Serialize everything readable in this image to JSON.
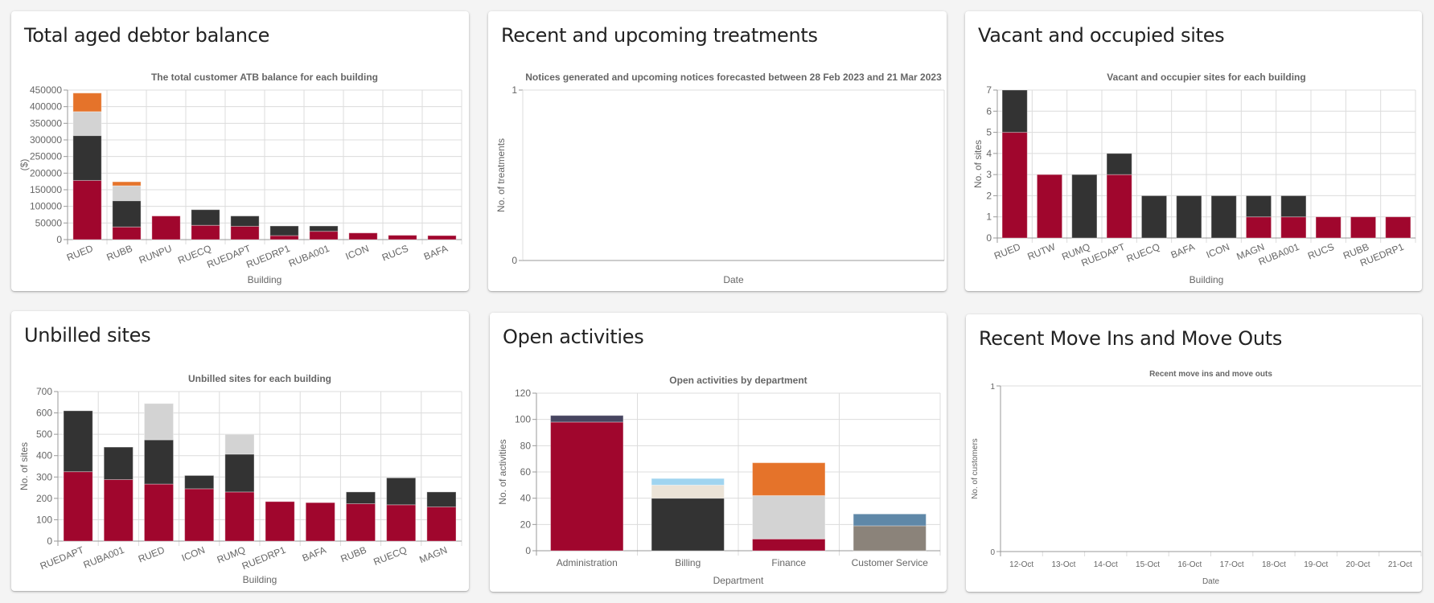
{
  "colors": {
    "crimson": "#a0062d",
    "dark": "#333333",
    "lightgrey": "#d3d3d3",
    "orange": "#e5732a",
    "navy": "#474560",
    "beige": "#ebe3d7",
    "lightblue": "#9fd4f0",
    "steelblue": "#5f88a8",
    "taupe": "#8b837a"
  },
  "cards": [
    {
      "title": "Total aged debtor balance"
    },
    {
      "title": "Recent and upcoming treatments"
    },
    {
      "title": "Vacant and occupied sites"
    },
    {
      "title": "Unbilled sites"
    },
    {
      "title": "Open activities"
    },
    {
      "title": "Recent Move Ins and Move Outs"
    }
  ],
  "chart_data": [
    {
      "type": "bar",
      "stacked": true,
      "title": "The total customer ATB balance for each building",
      "xlabel": "Building",
      "ylabel": "($)",
      "ylim": [
        0,
        450000
      ],
      "yticks": [
        0,
        50000,
        100000,
        150000,
        200000,
        250000,
        300000,
        350000,
        400000,
        450000
      ],
      "ytick_labels": [
        "0",
        "50000",
        "100000",
        "150000",
        "200000",
        "250000",
        "300000",
        "350000",
        "400000",
        "450000"
      ],
      "categories": [
        "RUED",
        "RUBB",
        "RUNPU",
        "RUECQ",
        "RUEDAPT",
        "RUEDRP1",
        "RUBA001",
        "ICON",
        "RUCS",
        "BAFA"
      ],
      "series": [
        {
          "color": "crimson",
          "values": [
            178000,
            38000,
            71000,
            43000,
            40000,
            12000,
            25000,
            20000,
            13000,
            12000
          ]
        },
        {
          "color": "dark",
          "values": [
            135000,
            79000,
            0,
            47000,
            31000,
            29000,
            16000,
            0,
            0,
            0
          ]
        },
        {
          "color": "lightgrey",
          "values": [
            72000,
            45000,
            0,
            0,
            0,
            0,
            0,
            0,
            0,
            0
          ]
        },
        {
          "color": "orange",
          "values": [
            56000,
            12000,
            0,
            0,
            0,
            0,
            0,
            0,
            0,
            0
          ]
        }
      ],
      "grid": true,
      "rotate_labels": true
    },
    {
      "type": "bar",
      "stacked": true,
      "title": "Notices generated and upcoming notices forecasted between 28 Feb 2023 and 21 Mar 2023",
      "xlabel": "Date",
      "ylabel": "No. of treatments",
      "ylim": [
        0,
        1
      ],
      "yticks": [
        0,
        1
      ],
      "ytick_labels": [
        "0",
        "1"
      ],
      "categories": [],
      "series": [],
      "grid": false
    },
    {
      "type": "bar",
      "stacked": true,
      "title": "Vacant and occupier sites for each building",
      "xlabel": "Building",
      "ylabel": "No. of sites",
      "ylim": [
        0,
        7
      ],
      "yticks": [
        0,
        1,
        2,
        3,
        4,
        5,
        6,
        7
      ],
      "ytick_labels": [
        "0",
        "1",
        "2",
        "3",
        "4",
        "5",
        "6",
        "7"
      ],
      "categories": [
        "RUED",
        "RUTW",
        "RUMQ",
        "RUEDAPT",
        "RUECQ",
        "BAFA",
        "ICON",
        "MAGN",
        "RUBA001",
        "RUCS",
        "RUBB",
        "RUEDRP1"
      ],
      "series": [
        {
          "color": "crimson",
          "values": [
            5,
            3,
            0,
            3,
            0,
            0,
            0,
            1,
            1,
            1,
            1,
            1
          ]
        },
        {
          "color": "dark",
          "values": [
            2,
            0,
            3,
            1,
            2,
            2,
            2,
            1,
            1,
            0,
            0,
            0
          ]
        }
      ],
      "grid": true,
      "rotate_labels": true
    },
    {
      "type": "bar",
      "stacked": true,
      "title": "Unbilled sites for each building",
      "xlabel": "Building",
      "ylabel": "No. of sites",
      "ylim": [
        0,
        700
      ],
      "yticks": [
        0,
        100,
        200,
        300,
        400,
        500,
        600,
        700
      ],
      "ytick_labels": [
        "0",
        "100",
        "200",
        "300",
        "400",
        "500",
        "600",
        "700"
      ],
      "categories": [
        "RUEDAPT",
        "RUBA001",
        "RUED",
        "ICON",
        "RUMQ",
        "RUEDRP1",
        "BAFA",
        "RUBB",
        "RUECQ",
        "MAGN"
      ],
      "series": [
        {
          "color": "crimson",
          "values": [
            325,
            288,
            267,
            245,
            230,
            185,
            180,
            175,
            170,
            160
          ]
        },
        {
          "color": "dark",
          "values": [
            285,
            152,
            207,
            62,
            177,
            0,
            0,
            55,
            126,
            70
          ]
        },
        {
          "color": "lightgrey",
          "values": [
            0,
            0,
            170,
            0,
            93,
            0,
            0,
            0,
            0,
            0
          ]
        }
      ],
      "grid": true,
      "rotate_labels": true
    },
    {
      "type": "bar",
      "stacked": true,
      "title": "Open activities by department",
      "xlabel": "Department",
      "ylabel": "No. of activities",
      "ylim": [
        0,
        120
      ],
      "yticks": [
        0,
        20,
        40,
        60,
        80,
        100,
        120
      ],
      "ytick_labels": [
        "0",
        "20",
        "40",
        "60",
        "80",
        "100",
        "120"
      ],
      "categories": [
        "Administration",
        "Billing",
        "Finance",
        "Customer Service"
      ],
      "series": [
        {
          "color": "crimson",
          "values": [
            98,
            0,
            9,
            0
          ]
        },
        {
          "color": "dark",
          "values": [
            0,
            40,
            0,
            0
          ]
        },
        {
          "color": "taupe",
          "values": [
            0,
            0,
            0,
            19
          ]
        },
        {
          "color": "lightgrey",
          "values": [
            0,
            0,
            33,
            0
          ]
        },
        {
          "color": "beige",
          "values": [
            0,
            10,
            0,
            0
          ]
        },
        {
          "color": "navy",
          "values": [
            5,
            0,
            0,
            0
          ]
        },
        {
          "color": "lightblue",
          "values": [
            0,
            5,
            0,
            0
          ]
        },
        {
          "color": "orange",
          "values": [
            0,
            0,
            25,
            0
          ]
        },
        {
          "color": "steelblue",
          "values": [
            0,
            0,
            0,
            9
          ]
        }
      ],
      "grid": true,
      "rotate_labels": false
    },
    {
      "type": "bar",
      "stacked": true,
      "title": "Recent move ins and move outs",
      "xlabel": "Date",
      "ylabel": "No. of customers",
      "ylim": [
        0,
        1
      ],
      "yticks": [
        0,
        1
      ],
      "ytick_labels": [
        "0",
        "1"
      ],
      "categories": [
        "12-Oct",
        "13-Oct",
        "14-Oct",
        "15-Oct",
        "16-Oct",
        "17-Oct",
        "18-Oct",
        "19-Oct",
        "20-Oct",
        "21-Oct"
      ],
      "series": [],
      "grid": false,
      "rotate_labels": false,
      "small": true
    }
  ]
}
